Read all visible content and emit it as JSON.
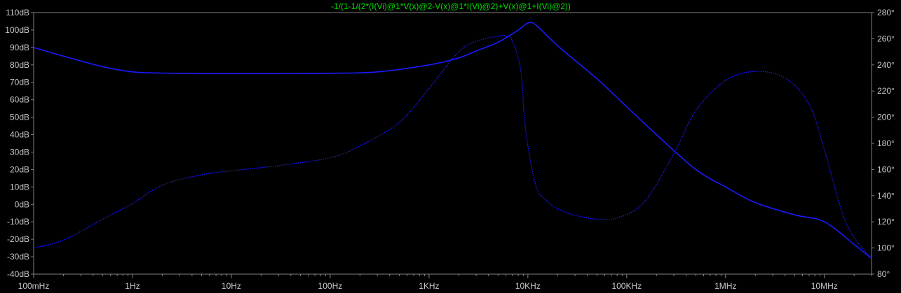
{
  "chart_data": {
    "type": "line",
    "title": "-1/(1-1/(2*(I(Vi)@1*V(x)@2-V(x)@1*I(Vi)@2)+V(x)@1+I(Vi)@2))",
    "xscale": "log",
    "xlim": [
      0.1,
      30000000
    ],
    "ylim_left": [
      -40,
      110
    ],
    "ylim_right": [
      80,
      280
    ],
    "x_ticks": [
      {
        "v": 0.1,
        "label": "100mHz"
      },
      {
        "v": 1,
        "label": "1Hz"
      },
      {
        "v": 10,
        "label": "10Hz"
      },
      {
        "v": 100,
        "label": "100Hz"
      },
      {
        "v": 1000,
        "label": "1KHz"
      },
      {
        "v": 10000,
        "label": "10KHz"
      },
      {
        "v": 100000,
        "label": "100KHz"
      },
      {
        "v": 1000000,
        "label": "1MHz"
      },
      {
        "v": 10000000,
        "label": "10MHz"
      }
    ],
    "y_left_ticks": [
      {
        "v": 110,
        "label": "110dB"
      },
      {
        "v": 100,
        "label": "100dB"
      },
      {
        "v": 90,
        "label": "90dB"
      },
      {
        "v": 80,
        "label": "80dB"
      },
      {
        "v": 70,
        "label": "70dB"
      },
      {
        "v": 60,
        "label": "60dB"
      },
      {
        "v": 50,
        "label": "50dB"
      },
      {
        "v": 40,
        "label": "40dB"
      },
      {
        "v": 30,
        "label": "30dB"
      },
      {
        "v": 20,
        "label": "20dB"
      },
      {
        "v": 10,
        "label": "10dB"
      },
      {
        "v": 0,
        "label": "0dB"
      },
      {
        "v": -10,
        "label": "-10dB"
      },
      {
        "v": -20,
        "label": "-20dB"
      },
      {
        "v": -30,
        "label": "-30dB"
      },
      {
        "v": -40,
        "label": "-40dB"
      }
    ],
    "y_right_ticks": [
      {
        "v": 280,
        "label": "280°"
      },
      {
        "v": 260,
        "label": "260°"
      },
      {
        "v": 240,
        "label": "240°"
      },
      {
        "v": 220,
        "label": "220°"
      },
      {
        "v": 200,
        "label": "200°"
      },
      {
        "v": 180,
        "label": "180°"
      },
      {
        "v": 160,
        "label": "160°"
      },
      {
        "v": 140,
        "label": "140°"
      },
      {
        "v": 120,
        "label": "120°"
      },
      {
        "v": 100,
        "label": "100°"
      },
      {
        "v": 80,
        "label": "80°"
      }
    ],
    "grid": false,
    "series": [
      {
        "kind": "magnitude",
        "axis": "left",
        "style": "solid",
        "color": "#1a1aff",
        "points": [
          [
            0.1,
            90
          ],
          [
            0.2,
            85
          ],
          [
            0.5,
            79
          ],
          [
            1,
            76
          ],
          [
            2,
            75.3
          ],
          [
            5,
            75
          ],
          [
            10,
            75
          ],
          [
            30,
            75
          ],
          [
            100,
            75.2
          ],
          [
            300,
            76
          ],
          [
            1000,
            80
          ],
          [
            2000,
            84
          ],
          [
            3000,
            88
          ],
          [
            5000,
            93
          ],
          [
            8000,
            100
          ],
          [
            10000,
            104
          ],
          [
            12000,
            103
          ],
          [
            20000,
            91
          ],
          [
            50000,
            72
          ],
          [
            100000,
            56
          ],
          [
            200000,
            40
          ],
          [
            500000,
            20
          ],
          [
            1000000,
            10
          ],
          [
            2000000,
            1
          ],
          [
            5000000,
            -6
          ],
          [
            10000000,
            -10
          ],
          [
            20000000,
            -23
          ],
          [
            30000000,
            -31
          ]
        ]
      },
      {
        "kind": "phase",
        "axis": "right",
        "style": "dotted",
        "color": "#1a1aff",
        "points": [
          [
            0.1,
            100
          ],
          [
            0.2,
            106
          ],
          [
            0.5,
            122
          ],
          [
            1,
            134
          ],
          [
            2,
            148
          ],
          [
            5,
            156
          ],
          [
            10,
            159
          ],
          [
            30,
            163
          ],
          [
            100,
            169
          ],
          [
            200,
            178
          ],
          [
            500,
            196
          ],
          [
            1000,
            222
          ],
          [
            2000,
            250
          ],
          [
            3000,
            258
          ],
          [
            5000,
            262
          ],
          [
            6000,
            262
          ],
          [
            7000,
            258
          ],
          [
            8500,
            235
          ],
          [
            9500,
            190
          ],
          [
            12000,
            148
          ],
          [
            15000,
            137
          ],
          [
            20000,
            130
          ],
          [
            30000,
            125
          ],
          [
            50000,
            122
          ],
          [
            80000,
            123
          ],
          [
            150000,
            135
          ],
          [
            300000,
            172
          ],
          [
            500000,
            205
          ],
          [
            1000000,
            228
          ],
          [
            2000000,
            235
          ],
          [
            4000000,
            230
          ],
          [
            7000000,
            210
          ],
          [
            10000000,
            175
          ],
          [
            15000000,
            128
          ],
          [
            20000000,
            108
          ],
          [
            30000000,
            92
          ]
        ]
      }
    ]
  }
}
